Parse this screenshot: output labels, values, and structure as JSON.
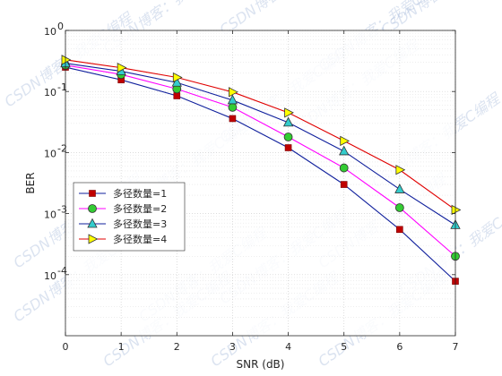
{
  "chart_data": {
    "type": "line",
    "xlabel": "SNR (dB)",
    "ylabel": "BER",
    "xscale": "linear",
    "yscale": "log",
    "xlim": [
      0,
      7
    ],
    "ylim": [
      1e-05,
      1
    ],
    "xticks": [
      "0",
      "1",
      "2",
      "3",
      "4",
      "5",
      "6",
      "7"
    ],
    "yticks": [
      {
        "value": 1,
        "base": "10",
        "exp": "0"
      },
      {
        "value": 0.1,
        "base": "10",
        "exp": "-1"
      },
      {
        "value": 0.01,
        "base": "10",
        "exp": "-2"
      },
      {
        "value": 0.001,
        "base": "10",
        "exp": "-3"
      },
      {
        "value": 0.0001,
        "base": "10",
        "exp": "-4"
      }
    ],
    "grid": true,
    "minor_grid": true,
    "legend_position": "lower-left",
    "x": [
      0,
      1,
      2,
      3,
      4,
      5,
      6,
      7
    ],
    "series": [
      {
        "name": "多径数量=1",
        "color": "#0f1f9c",
        "marker": "square",
        "marker_fill": "#c00000",
        "values": [
          0.25,
          0.155,
          0.085,
          0.036,
          0.012,
          0.003,
          0.00055,
          7.8e-05
        ]
      },
      {
        "name": "多径数量=2",
        "color": "#ff00ff",
        "marker": "circle",
        "marker_fill": "#33cc33",
        "values": [
          0.27,
          0.19,
          0.11,
          0.055,
          0.018,
          0.0056,
          0.00125,
          0.0002
        ]
      },
      {
        "name": "多径数量=3",
        "color": "#0f1f9c",
        "marker": "triangle-up",
        "marker_fill": "#33cccc",
        "values": [
          0.29,
          0.215,
          0.14,
          0.072,
          0.031,
          0.0105,
          0.0025,
          0.00065
        ]
      },
      {
        "name": "多径数量=4",
        "color": "#e00000",
        "marker": "triangle-right",
        "marker_fill": "#ffff00",
        "values": [
          0.33,
          0.245,
          0.17,
          0.098,
          0.045,
          0.0155,
          0.0052,
          0.00115
        ]
      }
    ]
  },
  "watermark": {
    "text": "CSDN博客：我爱C编程",
    "color": "#9ab0d6"
  }
}
